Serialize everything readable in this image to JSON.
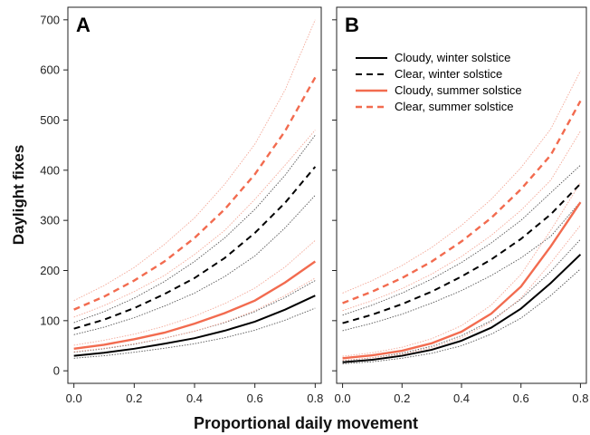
{
  "chart_data": {
    "type": "line",
    "xlabel": "Proportional daily movement",
    "ylabel": "Daylight fixes",
    "xlim": [
      -0.02,
      0.82
    ],
    "ylim": [
      -25,
      725
    ],
    "xticks": [
      "0.0",
      "0.2",
      "0.4",
      "0.6",
      "0.8"
    ],
    "yticks": [
      "0",
      "100",
      "200",
      "300",
      "400",
      "500",
      "600",
      "700"
    ],
    "legend": {
      "placement": "top-left of panel B",
      "entries": [
        {
          "label": "Cloudy, winter solstice",
          "color": "#000000",
          "dashed": false
        },
        {
          "label": "Clear, winter solstice",
          "color": "#000000",
          "dashed": true
        },
        {
          "label": "Cloudy, summer solstice",
          "color": "#f26b4f",
          "dashed": false
        },
        {
          "label": "Clear, summer solstice",
          "color": "#f26b4f",
          "dashed": true
        }
      ]
    },
    "x": [
      0.0,
      0.1,
      0.2,
      0.3,
      0.4,
      0.5,
      0.6,
      0.7,
      0.8
    ],
    "panels": [
      {
        "label": "A",
        "series": [
          {
            "name": "Cloudy, winter solstice",
            "color": "#000000",
            "dashed": false,
            "values": [
              30,
              36,
              44,
              54,
              65,
              80,
              98,
              122,
              150
            ],
            "ci_low": [
              25,
              30,
              37,
              45,
              54,
              66,
              81,
              101,
              125
            ],
            "ci_high": [
              37,
              44,
              53,
              65,
              79,
              96,
              118,
              146,
              180
            ]
          },
          {
            "name": "Clear, winter solstice",
            "color": "#000000",
            "dashed": true,
            "values": [
              84,
              102,
              125,
              153,
              185,
              225,
              275,
              335,
              407
            ],
            "ci_low": [
              72,
              87,
              106,
              129,
              155,
              188,
              229,
              285,
              350
            ],
            "ci_high": [
              96,
              118,
              145,
              178,
              218,
              265,
              322,
              390,
              470
            ]
          },
          {
            "name": "Cloudy, summer solstice",
            "color": "#f26b4f",
            "dashed": false,
            "values": [
              44,
              52,
              63,
              76,
              94,
              115,
              140,
              176,
              218
            ],
            "ci_low": [
              38,
              45,
              54,
              65,
              79,
              97,
              120,
              150,
              185
            ],
            "ci_high": [
              51,
              61,
              73,
              89,
              109,
              134,
              165,
              207,
              260
            ]
          },
          {
            "name": "Clear, summer solstice",
            "color": "#f26b4f",
            "dashed": true,
            "values": [
              122,
              148,
              180,
              218,
              265,
              322,
              392,
              478,
              585
            ],
            "ci_low": [
              107,
              130,
              158,
              190,
              232,
              280,
              342,
              410,
              480
            ],
            "ci_high": [
              140,
              170,
              206,
              252,
              305,
              372,
              452,
              560,
              700
            ]
          }
        ]
      },
      {
        "label": "B",
        "series": [
          {
            "name": "Cloudy, winter solstice",
            "color": "#000000",
            "dashed": false,
            "values": [
              17,
              22,
              30,
              42,
              60,
              86,
              124,
              175,
              232
            ],
            "ci_low": [
              14,
              18,
              25,
              35,
              50,
              73,
              105,
              150,
              203
            ],
            "ci_high": [
              20,
              26,
              35,
              49,
              70,
              100,
              143,
              198,
              262
            ]
          },
          {
            "name": "Clear, winter solstice",
            "color": "#000000",
            "dashed": true,
            "values": [
              95,
              112,
              133,
              158,
              188,
              222,
              263,
              312,
              373
            ],
            "ci_low": [
              80,
              95,
              113,
              135,
              160,
              190,
              225,
              268,
              337
            ],
            "ci_high": [
              111,
              131,
              155,
              183,
              216,
              255,
              300,
              355,
              410
            ]
          },
          {
            "name": "Cloudy, summer solstice",
            "color": "#f26b4f",
            "dashed": false,
            "values": [
              25,
              31,
              40,
              55,
              78,
              114,
              168,
              248,
              336
            ],
            "ci_low": [
              21,
              26,
              33,
              46,
              66,
              97,
              145,
              215,
              290
            ],
            "ci_high": [
              29,
              36,
              47,
              64,
              90,
              131,
              192,
              280,
              375
            ]
          },
          {
            "name": "Clear, summer solstice",
            "color": "#f26b4f",
            "dashed": true,
            "values": [
              135,
              158,
              185,
              218,
              258,
              305,
              362,
              430,
              538
            ],
            "ci_low": [
              120,
              140,
              164,
              193,
              228,
              270,
              320,
              380,
              478
            ],
            "ci_high": [
              155,
              180,
              210,
              246,
              290,
              342,
              405,
              482,
              598
            ]
          }
        ]
      }
    ]
  }
}
